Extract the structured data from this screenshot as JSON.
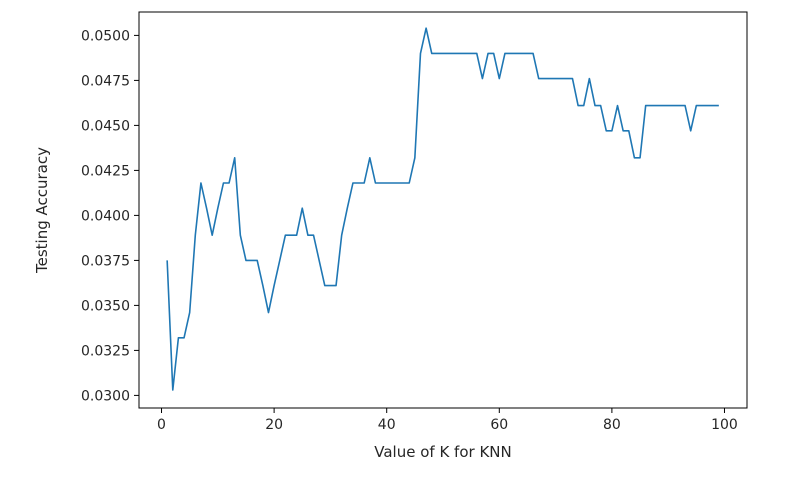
{
  "chart_data": {
    "type": "line",
    "title": "",
    "xlabel": "Value of K for KNN",
    "ylabel": "Testing Accuracy",
    "xlim": [
      -4,
      104
    ],
    "ylim": [
      0.0293,
      0.0513
    ],
    "xticks": [
      0,
      20,
      40,
      60,
      80,
      100
    ],
    "xtick_labels": [
      "0",
      "20",
      "40",
      "60",
      "80",
      "100"
    ],
    "yticks": [
      0.03,
      0.0325,
      0.035,
      0.0375,
      0.04,
      0.0425,
      0.045,
      0.0475,
      0.05
    ],
    "ytick_labels": [
      "0.0300",
      "0.0325",
      "0.0350",
      "0.0375",
      "0.0400",
      "0.0425",
      "0.0450",
      "0.0475",
      "0.0500"
    ],
    "grid": false,
    "legend": "none",
    "line_color": "#1f77b4",
    "series": [
      {
        "x": [
          1,
          2,
          3,
          4,
          5,
          6,
          7,
          8,
          9,
          10,
          11,
          12,
          13,
          14,
          15,
          16,
          17,
          18,
          19,
          20,
          21,
          22,
          23,
          24,
          25,
          26,
          27,
          28,
          29,
          30,
          31,
          32,
          33,
          34,
          35,
          36,
          37,
          38,
          39,
          40,
          41,
          42,
          43,
          44,
          45,
          46,
          47,
          48,
          49,
          50,
          51,
          52,
          53,
          54,
          55,
          56,
          57,
          58,
          59,
          60,
          61,
          62,
          63,
          64,
          65,
          66,
          67,
          68,
          69,
          70,
          71,
          72,
          73,
          74,
          75,
          76,
          77,
          78,
          79,
          80,
          81,
          82,
          83,
          84,
          85,
          86,
          87,
          88,
          89,
          90,
          91,
          92,
          93,
          94,
          95,
          96,
          97,
          98,
          99
        ],
        "y": [
          0.0375,
          0.0303,
          0.0332,
          0.0332,
          0.0346,
          0.0389,
          0.0418,
          0.0404,
          0.0389,
          0.0404,
          0.0418,
          0.0418,
          0.0432,
          0.0389,
          0.0375,
          0.0375,
          0.0375,
          0.0361,
          0.0346,
          0.0361,
          0.0375,
          0.0389,
          0.0389,
          0.0389,
          0.0404,
          0.0389,
          0.0389,
          0.0375,
          0.0361,
          0.0361,
          0.0361,
          0.0389,
          0.0404,
          0.0418,
          0.0418,
          0.0418,
          0.0432,
          0.0418,
          0.0418,
          0.0418,
          0.0418,
          0.0418,
          0.0418,
          0.0418,
          0.0432,
          0.049,
          0.0504,
          0.049,
          0.049,
          0.049,
          0.049,
          0.049,
          0.049,
          0.049,
          0.049,
          0.049,
          0.0476,
          0.049,
          0.049,
          0.0476,
          0.049,
          0.049,
          0.049,
          0.049,
          0.049,
          0.049,
          0.0476,
          0.0476,
          0.0476,
          0.0476,
          0.0476,
          0.0476,
          0.0476,
          0.0461,
          0.0461,
          0.0476,
          0.0461,
          0.0461,
          0.0447,
          0.0447,
          0.0461,
          0.0447,
          0.0447,
          0.0432,
          0.0432,
          0.0461,
          0.0461,
          0.0461,
          0.0461,
          0.0461,
          0.0461,
          0.0461,
          0.0461,
          0.0447,
          0.0461,
          0.0461,
          0.0461,
          0.0461,
          0.0461
        ]
      }
    ]
  }
}
